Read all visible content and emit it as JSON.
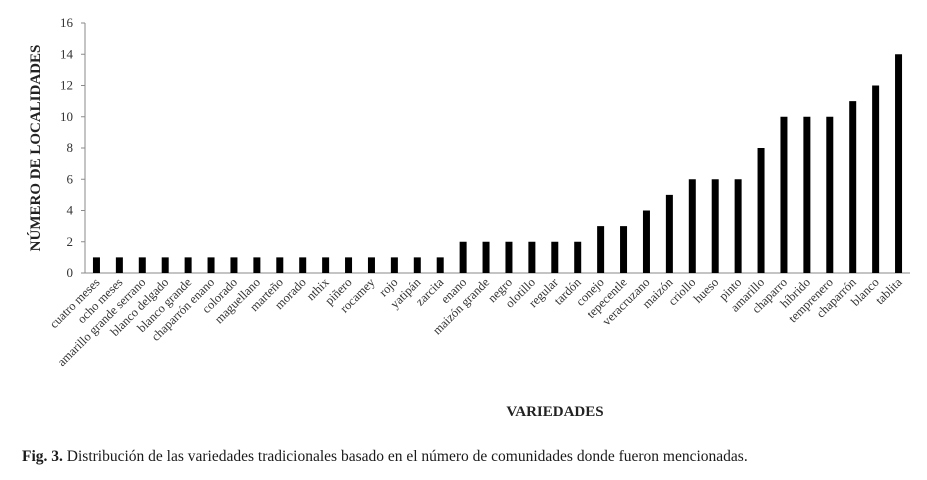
{
  "chart_data": {
    "type": "bar",
    "ylabel": "NÚMERO DE LOCALIDADES",
    "xlabel": "VARIEDADES",
    "ylim": [
      0,
      16
    ],
    "yticks": [
      0,
      2,
      4,
      6,
      8,
      10,
      12,
      14,
      16
    ],
    "grid": false,
    "legend": "none",
    "bar_color": "#000000",
    "categories": [
      "cuatro meses",
      "ocho meses",
      "amarillo grande serrano",
      "blanco delgado",
      "blanco grande",
      "chaparrón enano",
      "colorado",
      "maguellano",
      "marteño",
      "morado",
      "nthix",
      "piñero",
      "rocamey",
      "rojo",
      "yatipán",
      "zarcita",
      "enano",
      "maizón grande",
      "negro",
      "olotillo",
      "regular",
      "tardón",
      "conejo",
      "tepecentle",
      "veracruzano",
      "maizón",
      "criollo",
      "hueso",
      "pinto",
      "amarillo",
      "chaparro",
      "híbrido",
      "temprenero",
      "chaparrón",
      "blanco",
      "tablita"
    ],
    "values": [
      1,
      1,
      1,
      1,
      1,
      1,
      1,
      1,
      1,
      1,
      1,
      1,
      1,
      1,
      1,
      1,
      2,
      2,
      2,
      2,
      2,
      2,
      3,
      3,
      4,
      5,
      6,
      6,
      6,
      8,
      10,
      10,
      10,
      11,
      12,
      14
    ]
  },
  "caption": {
    "label": "Fig. 3.",
    "text": " Distribución de las variedades tradicionales basado en el número de comunidades donde fueron mencionadas."
  }
}
